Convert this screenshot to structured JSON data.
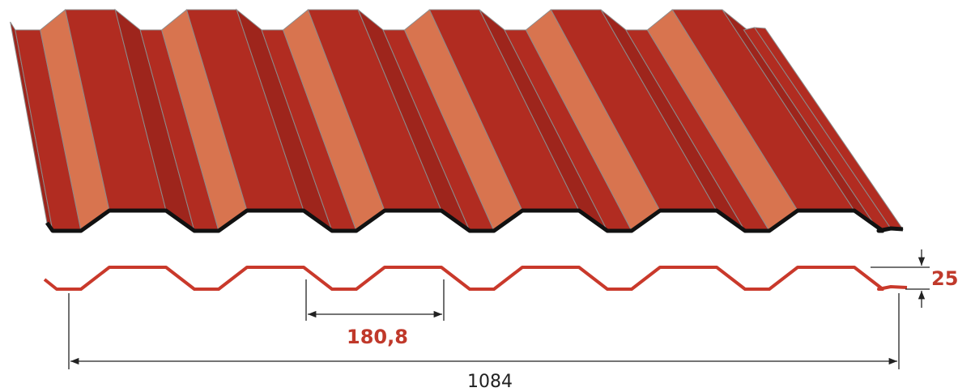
{
  "dimensions": {
    "height": "25",
    "pitch": "180,8",
    "width": "1084"
  }
}
